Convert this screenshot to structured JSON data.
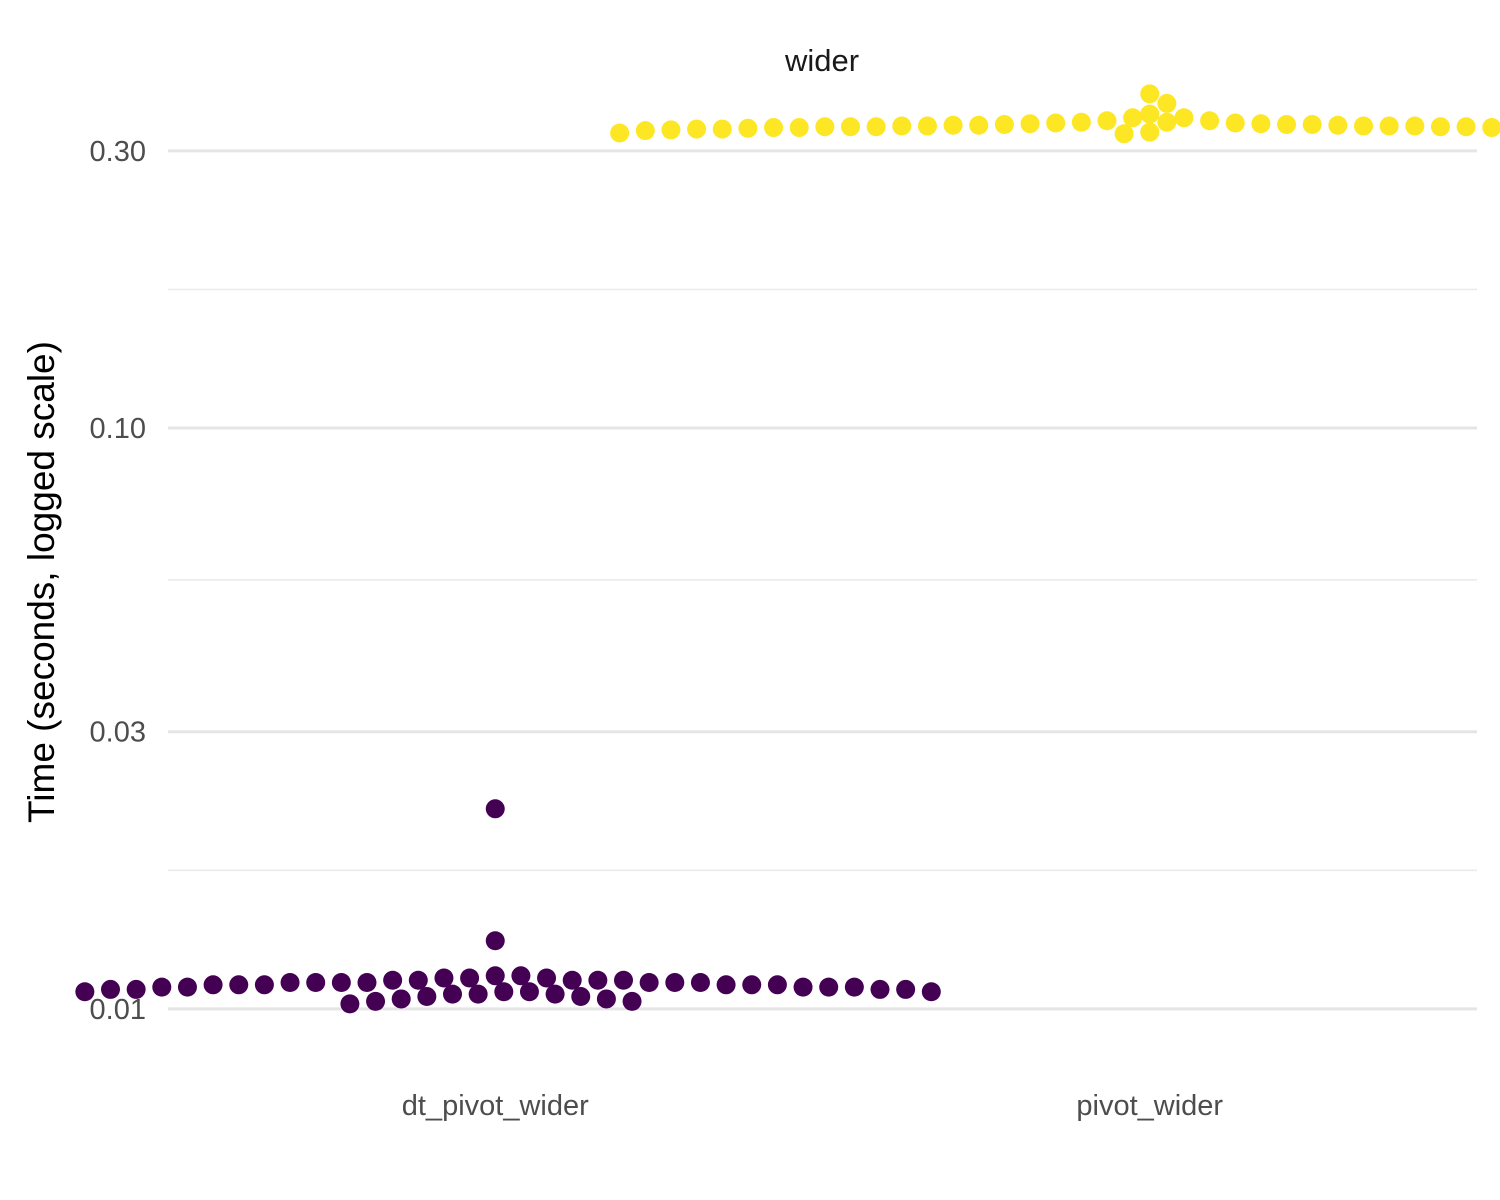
{
  "chart_data": {
    "type": "scatter",
    "facet": "wider",
    "xlabel": "",
    "ylabel": "Time (seconds, logged scale)",
    "y_scale": "log10",
    "ylim": [
      0.0081,
      0.43
    ],
    "y_ticks": [
      {
        "value": 0.01,
        "label": "0.01"
      },
      {
        "value": 0.03,
        "label": "0.03"
      },
      {
        "value": 0.1,
        "label": "0.10"
      },
      {
        "value": 0.3,
        "label": "0.30"
      }
    ],
    "y_minor_ticks": [
      0.01732,
      0.05477,
      0.1732,
      0.5196
    ],
    "grid": true,
    "legend": "none",
    "categories": [
      "dt_pivot_wider",
      "pivot_wider"
    ],
    "series": [
      {
        "category": "dt_pivot_wider",
        "color": "#440154",
        "values": [
          0.0221,
          0.0131,
          0.0114,
          0.0114,
          0.0112,
          0.0112,
          0.0113,
          0.0113,
          0.0113,
          0.0112,
          0.0112,
          0.0112,
          0.0111,
          0.0111,
          0.0111,
          0.0111,
          0.0111,
          0.0111,
          0.0111,
          0.011,
          0.011,
          0.011,
          0.011,
          0.011,
          0.011,
          0.0109,
          0.0109,
          0.0109,
          0.0109,
          0.0109,
          0.0108,
          0.0108,
          0.0108,
          0.0108,
          0.0107,
          0.0107,
          0.0107,
          0.0107,
          0.0106,
          0.0106,
          0.0106,
          0.0105,
          0.0105,
          0.0104,
          0.0104,
          0.0103,
          0.0103,
          0.0102
        ]
      },
      {
        "category": "pivot_wider",
        "color": "#fde725",
        "values": [
          0.376,
          0.362,
          0.347,
          0.342,
          0.342,
          0.338,
          0.338,
          0.336,
          0.336,
          0.335,
          0.335,
          0.334,
          0.334,
          0.333,
          0.333,
          0.333,
          0.332,
          0.332,
          0.332,
          0.331,
          0.331,
          0.331,
          0.331,
          0.331,
          0.33,
          0.33,
          0.33,
          0.33,
          0.33,
          0.329,
          0.329,
          0.329,
          0.329,
          0.328,
          0.328,
          0.328,
          0.327,
          0.327,
          0.327,
          0.326,
          0.326,
          0.325,
          0.325,
          0.324,
          0.323,
          0.322,
          0.321
        ]
      }
    ]
  }
}
